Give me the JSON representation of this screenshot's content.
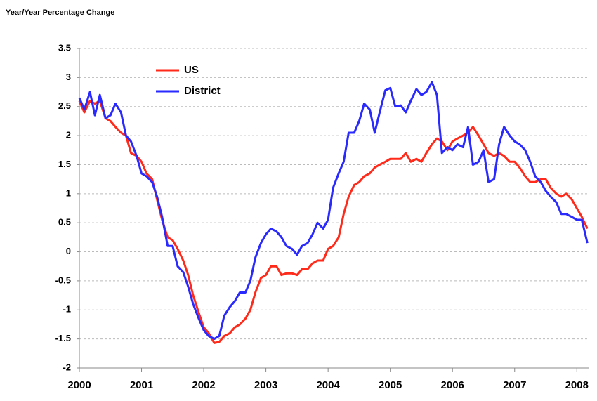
{
  "chart_data": {
    "type": "line",
    "title": "Year/Year Percentage Change",
    "x": [
      2000,
      2000.08,
      2000.17,
      2000.25,
      2000.33,
      2000.42,
      2000.5,
      2000.58,
      2000.67,
      2000.75,
      2000.83,
      2000.92,
      2001,
      2001.08,
      2001.17,
      2001.25,
      2001.33,
      2001.42,
      2001.5,
      2001.58,
      2001.67,
      2001.75,
      2001.83,
      2001.92,
      2002,
      2002.08,
      2002.17,
      2002.25,
      2002.33,
      2002.42,
      2002.5,
      2002.58,
      2002.67,
      2002.75,
      2002.83,
      2002.92,
      2003,
      2003.08,
      2003.17,
      2003.25,
      2003.33,
      2003.42,
      2003.5,
      2003.58,
      2003.67,
      2003.75,
      2003.83,
      2003.92,
      2004,
      2004.08,
      2004.17,
      2004.25,
      2004.33,
      2004.42,
      2004.5,
      2004.58,
      2004.67,
      2004.75,
      2004.83,
      2004.92,
      2005,
      2005.08,
      2005.17,
      2005.25,
      2005.33,
      2005.42,
      2005.5,
      2005.58,
      2005.67,
      2005.75,
      2005.83,
      2005.92,
      2006,
      2006.08,
      2006.17,
      2006.25,
      2006.33,
      2006.42,
      2006.5,
      2006.58,
      2006.67,
      2006.75,
      2006.83,
      2006.92,
      2007,
      2007.08,
      2007.17,
      2007.25,
      2007.33,
      2007.42,
      2007.5,
      2007.58,
      2007.67,
      2007.75,
      2007.83,
      2007.92,
      2008,
      2008.08,
      2008.17
    ],
    "series": [
      {
        "name": "US",
        "color": "#ff2a1a",
        "values": [
          2.6,
          2.4,
          2.6,
          2.55,
          2.6,
          2.3,
          2.25,
          2.15,
          2.05,
          2.0,
          1.7,
          1.65,
          1.55,
          1.35,
          1.25,
          0.9,
          0.55,
          0.25,
          0.2,
          0.05,
          -0.15,
          -0.4,
          -0.75,
          -1.05,
          -1.3,
          -1.4,
          -1.57,
          -1.55,
          -1.45,
          -1.4,
          -1.3,
          -1.25,
          -1.15,
          -1.0,
          -0.7,
          -0.45,
          -0.4,
          -0.25,
          -0.25,
          -0.4,
          -0.37,
          -0.37,
          -0.4,
          -0.3,
          -0.3,
          -0.2,
          -0.15,
          -0.15,
          0.05,
          0.1,
          0.25,
          0.65,
          0.95,
          1.15,
          1.2,
          1.3,
          1.35,
          1.45,
          1.5,
          1.55,
          1.6,
          1.6,
          1.6,
          1.7,
          1.55,
          1.6,
          1.55,
          1.7,
          1.85,
          1.95,
          1.9,
          1.75,
          1.9,
          1.95,
          2.0,
          2.05,
          2.15,
          2.0,
          1.85,
          1.7,
          1.65,
          1.7,
          1.65,
          1.55,
          1.55,
          1.45,
          1.3,
          1.2,
          1.2,
          1.25,
          1.25,
          1.1,
          1.0,
          0.95,
          1.0,
          0.9,
          0.75,
          0.6,
          0.4
        ]
      },
      {
        "name": "District",
        "color": "#2a2aff",
        "values": [
          2.65,
          2.45,
          2.75,
          2.35,
          2.7,
          2.3,
          2.35,
          2.55,
          2.4,
          2.0,
          1.9,
          1.65,
          1.35,
          1.3,
          1.2,
          0.95,
          0.6,
          0.1,
          0.1,
          -0.25,
          -0.35,
          -0.6,
          -0.9,
          -1.15,
          -1.35,
          -1.45,
          -1.5,
          -1.45,
          -1.1,
          -0.95,
          -0.85,
          -0.7,
          -0.7,
          -0.5,
          -0.1,
          0.15,
          0.3,
          0.4,
          0.35,
          0.25,
          0.1,
          0.05,
          -0.05,
          0.1,
          0.15,
          0.3,
          0.5,
          0.4,
          0.55,
          1.1,
          1.35,
          1.55,
          2.05,
          2.05,
          2.25,
          2.55,
          2.45,
          2.05,
          2.4,
          2.78,
          2.82,
          2.5,
          2.52,
          2.4,
          2.6,
          2.8,
          2.7,
          2.75,
          2.92,
          2.7,
          1.7,
          1.8,
          1.75,
          1.85,
          1.8,
          2.15,
          1.5,
          1.55,
          1.75,
          1.2,
          1.25,
          1.85,
          2.15,
          2.0,
          1.9,
          1.85,
          1.75,
          1.55,
          1.3,
          1.2,
          1.05,
          0.95,
          0.85,
          0.65,
          0.65,
          0.6,
          0.55,
          0.55,
          0.15
        ]
      }
    ],
    "xlim": [
      2000,
      2008.2
    ],
    "xticks": [
      2000,
      2001,
      2002,
      2003,
      2004,
      2005,
      2006,
      2007,
      2008
    ],
    "ylim": [
      -2,
      3.5
    ],
    "yticks": [
      3.5,
      3,
      2.5,
      2,
      1.5,
      1,
      0.5,
      0,
      -0.5,
      -1,
      -1.5,
      -2
    ],
    "grid": true,
    "legend": "upper left"
  }
}
